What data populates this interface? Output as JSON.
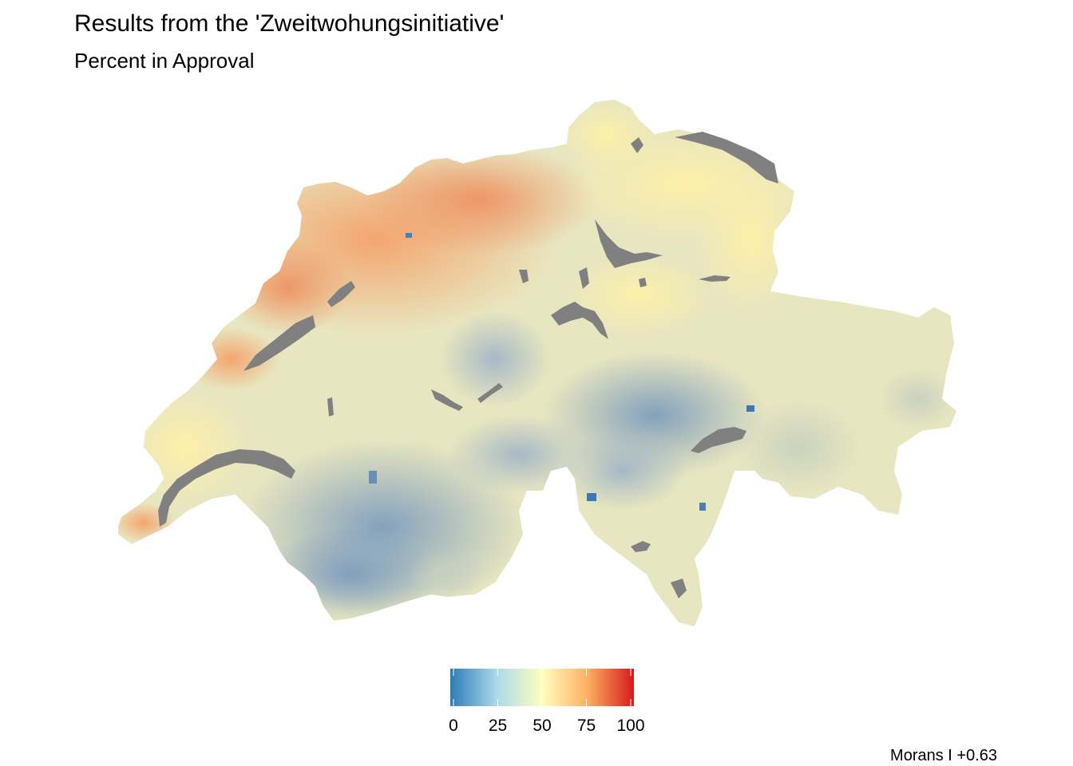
{
  "title": "Results from the 'Zweitwohungsinitiative'",
  "subtitle": "Percent in Approval",
  "legend": {
    "scale": "diverging RdYlBu (reversed)",
    "colors": [
      "#2c7bb6",
      "#abd9e9",
      "#ffffbf",
      "#fdae61",
      "#d7191c"
    ],
    "ticks": [
      "0",
      "25",
      "50",
      "75",
      "100"
    ],
    "tick_values": [
      0,
      25,
      50,
      75,
      100
    ],
    "range": [
      0,
      100
    ]
  },
  "lake_color": "#808080",
  "caption": "Morans I +0.63"
}
